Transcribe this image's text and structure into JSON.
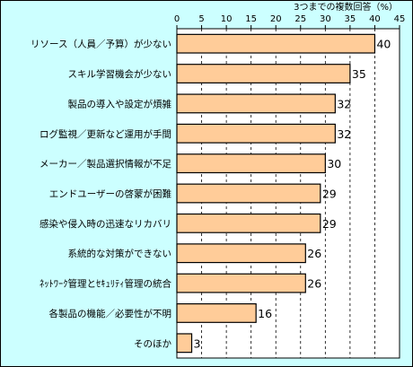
{
  "chart_data": {
    "type": "bar",
    "orientation": "horizontal",
    "unit_label": "3つまでの複数回答（%）",
    "xlim": [
      0,
      45
    ],
    "xticks": [
      "0",
      "5",
      "10",
      "15",
      "20",
      "25",
      "30",
      "35",
      "40",
      "45"
    ],
    "grid": true,
    "categories": [
      "リソース（人員／予算）が少ない",
      "スキル学習機会が少ない",
      "製品の導入や設定が煩雑",
      "ログ監視／更新など運用が手間",
      "メーカー／製品選択情報が不足",
      "エンドユーザーの啓蒙が困難",
      "感染や侵入時の迅速なリカバリ",
      "系統的な対策ができない",
      "ﾈｯﾄﾜｰｸ管理とｾｷｭﾘﾃｨ管理の統合",
      "各製品の機能／必要性が不明",
      "そのほか"
    ],
    "values": [
      40,
      35,
      32,
      32,
      30,
      29,
      29,
      26,
      26,
      16,
      3
    ],
    "colors": {
      "background": "#ccffff",
      "plot": "#ffffff",
      "bar": "#ffcc99",
      "bar_stroke": "#000000",
      "grid": "#000000"
    }
  }
}
